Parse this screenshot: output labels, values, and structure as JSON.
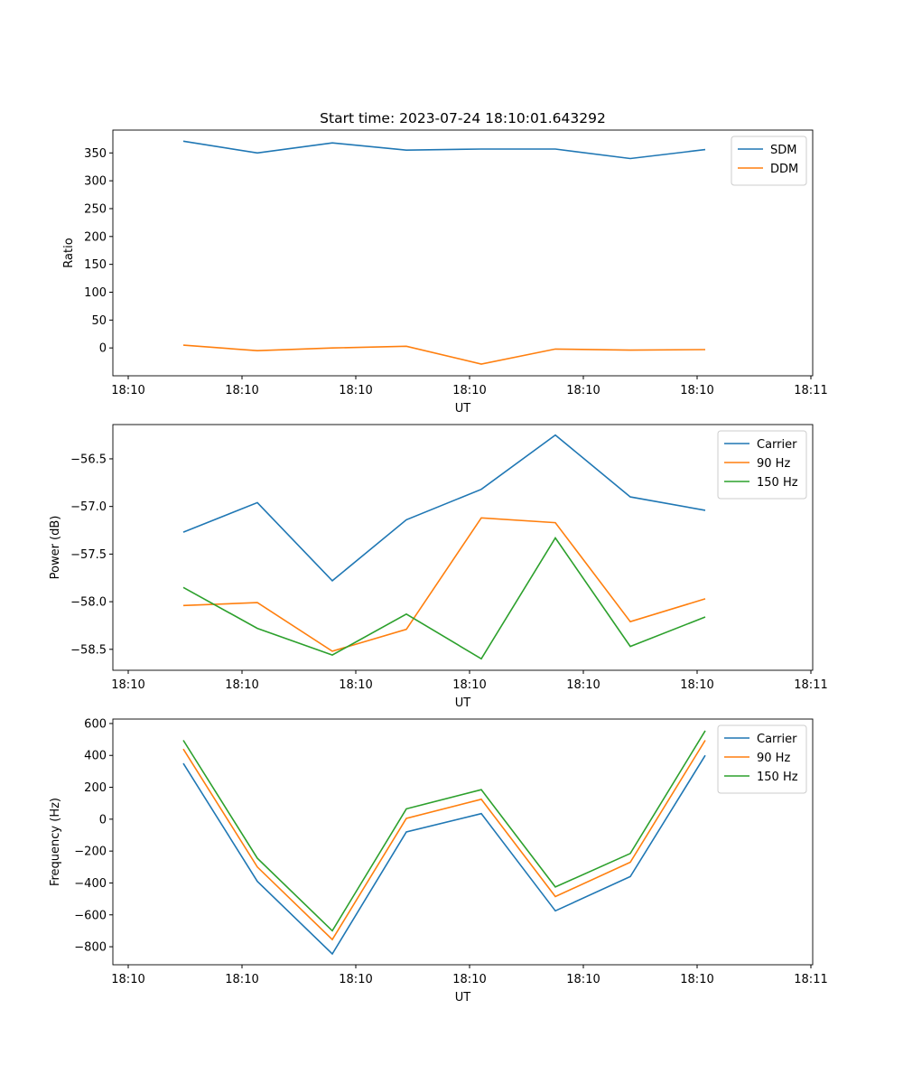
{
  "chart_data": [
    {
      "type": "line",
      "title": "Start time: 2023-07-24 18:10:01.643292",
      "xlabel": "UT",
      "ylabel": "Ratio",
      "xticks": [
        "18:10",
        "18:10",
        "18:10",
        "18:10",
        "18:10",
        "18:10",
        "18:11"
      ],
      "yticks": [
        0,
        50,
        100,
        150,
        200,
        250,
        300,
        350
      ],
      "ylim": [
        -50,
        391
      ],
      "x": [
        1,
        2,
        3,
        4,
        5,
        6,
        7,
        8
      ],
      "legend": "top-right",
      "series": [
        {
          "name": "SDM",
          "color": "#1f77b4",
          "values": [
            371,
            350,
            368,
            355,
            357,
            357,
            340,
            356
          ]
        },
        {
          "name": "DDM",
          "color": "#ff7f0e",
          "values": [
            5,
            -5,
            0,
            3,
            -29,
            -2,
            -4,
            -3
          ]
        }
      ]
    },
    {
      "type": "line",
      "title": "",
      "xlabel": "UT",
      "ylabel": "Power (dB)",
      "xticks": [
        "18:10",
        "18:10",
        "18:10",
        "18:10",
        "18:10",
        "18:10",
        "18:11"
      ],
      "yticks": [
        -56.5,
        -57.0,
        -57.5,
        -58.0,
        -58.5
      ],
      "ylim": [
        -58.72,
        -56.14
      ],
      "x": [
        1,
        2,
        3,
        4,
        5,
        6,
        7,
        8
      ],
      "legend": "top-right",
      "series": [
        {
          "name": "Carrier",
          "color": "#1f77b4",
          "values": [
            -57.27,
            -56.96,
            -57.78,
            -57.14,
            -56.82,
            -56.25,
            -56.9,
            -57.04
          ]
        },
        {
          "name": "90 Hz",
          "color": "#ff7f0e",
          "values": [
            -58.04,
            -58.01,
            -58.52,
            -58.29,
            -57.12,
            -57.17,
            -58.21,
            -57.97
          ]
        },
        {
          "name": "150 Hz",
          "color": "#2ca02c",
          "values": [
            -57.85,
            -58.28,
            -58.56,
            -58.13,
            -58.6,
            -57.33,
            -58.47,
            -58.16
          ]
        }
      ]
    },
    {
      "type": "line",
      "title": "",
      "xlabel": "UT",
      "ylabel": "Frequency (Hz)",
      "xticks": [
        "18:10",
        "18:10",
        "18:10",
        "18:10",
        "18:10",
        "18:10",
        "18:11"
      ],
      "yticks": [
        600,
        400,
        200,
        0,
        -200,
        -400,
        -600,
        -800
      ],
      "ylim": [
        -913,
        628
      ],
      "x": [
        1,
        2,
        3,
        4,
        5,
        6,
        7,
        8
      ],
      "legend": "top-right",
      "series": [
        {
          "name": "Carrier",
          "color": "#1f77b4",
          "values": [
            350,
            -390,
            -845,
            -80,
            35,
            -575,
            -360,
            400
          ]
        },
        {
          "name": "90 Hz",
          "color": "#ff7f0e",
          "values": [
            440,
            -300,
            -755,
            5,
            125,
            -485,
            -270,
            495
          ]
        },
        {
          "name": "150 Hz",
          "color": "#2ca02c",
          "values": [
            495,
            -245,
            -700,
            65,
            185,
            -425,
            -215,
            555
          ]
        }
      ]
    }
  ]
}
